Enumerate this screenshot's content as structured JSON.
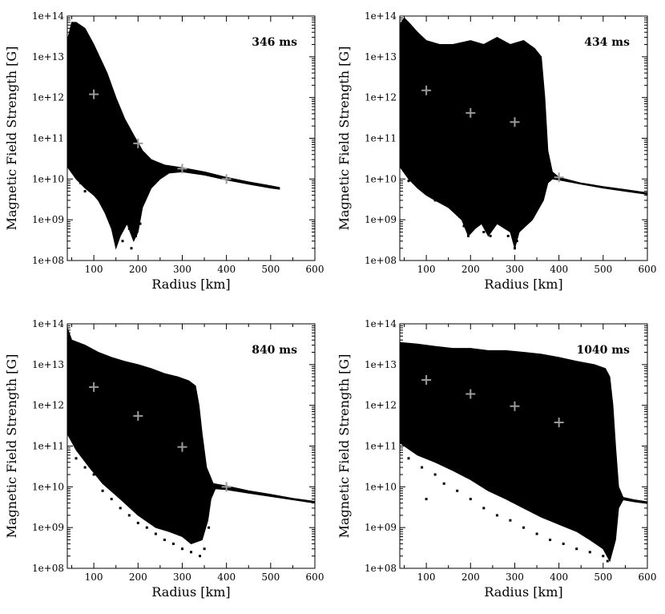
{
  "chart_data": [
    {
      "type": "scatter",
      "title": "346 ms",
      "xlabel": "Radius [km]",
      "ylabel": "Magnetic Field Strength [G]",
      "xlim": [
        40,
        600
      ],
      "ylim": [
        100000000.0,
        100000000000000.0
      ],
      "yscale": "log",
      "xticks": [
        "100",
        "200",
        "300",
        "400",
        "500",
        "600"
      ],
      "yticks": [
        "1e+08",
        "1e+09",
        "1e+10",
        "1e+11",
        "1e+12",
        "1e+13",
        "1e+14"
      ],
      "grid": false,
      "envelope_upper": [
        [
          40,
          25000000000000.0
        ],
        [
          50,
          70000000000000.0
        ],
        [
          60,
          70000000000000.0
        ],
        [
          80,
          50000000000000.0
        ],
        [
          100,
          20000000000000.0
        ],
        [
          130,
          4000000000000.0
        ],
        [
          150,
          1000000000000.0
        ],
        [
          170,
          300000000000.0
        ],
        [
          190,
          120000000000.0
        ],
        [
          210,
          50000000000.0
        ],
        [
          230,
          30000000000.0
        ],
        [
          260,
          22000000000.0
        ],
        [
          300,
          19000000000.0
        ],
        [
          350,
          15000000000.0
        ],
        [
          400,
          11000000000.0
        ],
        [
          450,
          8500000000.0
        ],
        [
          500,
          6800000000.0
        ],
        [
          520,
          6200000000.0
        ]
      ],
      "envelope_lower": [
        [
          520,
          5600000000.0
        ],
        [
          500,
          6000000000.0
        ],
        [
          450,
          7500000000.0
        ],
        [
          400,
          9500000000.0
        ],
        [
          350,
          12500000000.0
        ],
        [
          300,
          15000000000.0
        ],
        [
          270,
          14000000000.0
        ],
        [
          250,
          10000000000.0
        ],
        [
          230,
          6000000000.0
        ],
        [
          210,
          2000000000.0
        ],
        [
          200,
          500000000.0
        ],
        [
          190,
          300000000.0
        ],
        [
          175,
          800000000.0
        ],
        [
          160,
          400000000.0
        ],
        [
          150,
          200000000.0
        ],
        [
          140,
          600000000.0
        ],
        [
          125,
          1500000000.0
        ],
        [
          110,
          3000000000.0
        ],
        [
          100,
          4000000000.0
        ],
        [
          80,
          6000000000.0
        ],
        [
          60,
          10000000000.0
        ],
        [
          40,
          20000000000.0
        ]
      ],
      "scatter_extra": [
        [
          90,
          7000000000.0
        ],
        [
          100,
          5000000000.0
        ],
        [
          110,
          4000000000.0
        ],
        [
          120,
          3000000000.0
        ],
        [
          135,
          2500000000.0
        ],
        [
          145,
          1200000000.0
        ],
        [
          155,
          500000000.0
        ],
        [
          165,
          300000000.0
        ],
        [
          180,
          600000000.0
        ],
        [
          185,
          200000000.0
        ],
        [
          195,
          400000000.0
        ],
        [
          205,
          800000000.0
        ],
        [
          215,
          3000000000.0
        ],
        [
          80,
          5000000000.0
        ],
        [
          70,
          8000000000.0
        ],
        [
          125,
          2000000000.0
        ],
        [
          150,
          300000000.0
        ]
      ],
      "mean_markers": [
        [
          100,
          1200000000000.0
        ],
        [
          200,
          75000000000.0
        ],
        [
          300,
          18000000000.0
        ],
        [
          400,
          10000000000.0
        ]
      ]
    },
    {
      "type": "scatter",
      "title": "434 ms",
      "xlabel": "Radius [km]",
      "ylabel": "Magnetic Field Strength [G]",
      "xlim": [
        40,
        600
      ],
      "ylim": [
        100000000.0,
        100000000000000.0
      ],
      "yscale": "log",
      "xticks": [
        "100",
        "200",
        "300",
        "400",
        "500",
        "600"
      ],
      "yticks": [
        "1e+08",
        "1e+09",
        "1e+10",
        "1e+11",
        "1e+12",
        "1e+13",
        "1e+14"
      ],
      "grid": false,
      "envelope_upper": [
        [
          40,
          60000000000000.0
        ],
        [
          50,
          90000000000000.0
        ],
        [
          60,
          70000000000000.0
        ],
        [
          80,
          40000000000000.0
        ],
        [
          100,
          25000000000000.0
        ],
        [
          130,
          20000000000000.0
        ],
        [
          160,
          20000000000000.0
        ],
        [
          200,
          25000000000000.0
        ],
        [
          230,
          20000000000000.0
        ],
        [
          260,
          30000000000000.0
        ],
        [
          290,
          20000000000000.0
        ],
        [
          320,
          25000000000000.0
        ],
        [
          345,
          16000000000000.0
        ],
        [
          360,
          10000000000000.0
        ],
        [
          368,
          1000000000000.0
        ],
        [
          375,
          50000000000.0
        ],
        [
          385,
          15000000000.0
        ],
        [
          400,
          11000000000.0
        ],
        [
          450,
          8000000000.0
        ],
        [
          500,
          6500000000.0
        ],
        [
          550,
          5500000000.0
        ],
        [
          600,
          4600000000.0
        ]
      ],
      "envelope_lower": [
        [
          600,
          4200000000.0
        ],
        [
          550,
          5000000000.0
        ],
        [
          500,
          6000000000.0
        ],
        [
          450,
          7500000000.0
        ],
        [
          400,
          9500000000.0
        ],
        [
          385,
          10000000000.0
        ],
        [
          375,
          8000000000.0
        ],
        [
          365,
          3000000000.0
        ],
        [
          340,
          1000000000.0
        ],
        [
          310,
          500000000.0
        ],
        [
          300,
          200000000.0
        ],
        [
          290,
          500000000.0
        ],
        [
          260,
          800000000.0
        ],
        [
          240,
          400000000.0
        ],
        [
          225,
          800000000.0
        ],
        [
          210,
          600000000.0
        ],
        [
          195,
          400000000.0
        ],
        [
          180,
          1000000000.0
        ],
        [
          150,
          2000000000.0
        ],
        [
          120,
          3000000000.0
        ],
        [
          100,
          4000000000.0
        ],
        [
          80,
          6000000000.0
        ],
        [
          60,
          10000000000.0
        ],
        [
          40,
          20000000000.0
        ]
      ],
      "scatter_extra": [
        [
          60,
          9000000000.0
        ],
        [
          80,
          7000000000.0
        ],
        [
          100,
          5000000000.0
        ],
        [
          120,
          3000000000.0
        ],
        [
          140,
          2500000000.0
        ],
        [
          160,
          2000000000.0
        ],
        [
          175,
          1200000000.0
        ],
        [
          185,
          700000000.0
        ],
        [
          195,
          400000000.0
        ],
        [
          205,
          600000000.0
        ],
        [
          215,
          900000000.0
        ],
        [
          230,
          500000000.0
        ],
        [
          245,
          400000000.0
        ],
        [
          255,
          1200000000.0
        ],
        [
          270,
          800000000.0
        ],
        [
          285,
          400000000.0
        ],
        [
          300,
          200000000.0
        ],
        [
          305,
          300000000.0
        ],
        [
          320,
          1000000000.0
        ],
        [
          335,
          1500000000.0
        ],
        [
          350,
          2000000000.0
        ],
        [
          360,
          3000000000.0
        ]
      ],
      "mean_markers": [
        [
          100,
          1500000000000.0
        ],
        [
          200,
          420000000000.0
        ],
        [
          300,
          250000000000.0
        ],
        [
          400,
          11000000000.0
        ]
      ]
    },
    {
      "type": "scatter",
      "title": "840 ms",
      "xlabel": "Radius [km]",
      "ylabel": "Magnetic Field Strength [G]",
      "xlim": [
        40,
        600
      ],
      "ylim": [
        100000000.0,
        100000000000000.0
      ],
      "yscale": "log",
      "xticks": [
        "100",
        "200",
        "300",
        "400",
        "500",
        "600"
      ],
      "yticks": [
        "1e+08",
        "1e+09",
        "1e+10",
        "1e+11",
        "1e+12",
        "1e+13",
        "1e+14"
      ],
      "grid": false,
      "envelope_upper": [
        [
          40,
          80000000000000.0
        ],
        [
          50,
          40000000000000.0
        ],
        [
          80,
          30000000000000.0
        ],
        [
          110,
          20000000000000.0
        ],
        [
          140,
          15000000000000.0
        ],
        [
          170,
          12000000000000.0
        ],
        [
          200,
          10000000000000.0
        ],
        [
          230,
          8000000000000.0
        ],
        [
          260,
          6000000000000.0
        ],
        [
          290,
          5000000000000.0
        ],
        [
          315,
          4000000000000.0
        ],
        [
          330,
          3000000000000.0
        ],
        [
          338,
          1000000000000.0
        ],
        [
          345,
          200000000000.0
        ],
        [
          355,
          30000000000.0
        ],
        [
          370,
          12000000000.0
        ],
        [
          400,
          10500000000.0
        ],
        [
          450,
          8000000000.0
        ],
        [
          500,
          6500000000.0
        ],
        [
          550,
          5200000000.0
        ],
        [
          600,
          4400000000.0
        ]
      ],
      "envelope_lower": [
        [
          600,
          4000000000.0
        ],
        [
          550,
          4800000000.0
        ],
        [
          500,
          5800000000.0
        ],
        [
          450,
          7000000000.0
        ],
        [
          400,
          8500000000.0
        ],
        [
          375,
          9000000000.0
        ],
        [
          365,
          5000000000.0
        ],
        [
          358,
          1500000000.0
        ],
        [
          345,
          500000000.0
        ],
        [
          320,
          400000000.0
        ],
        [
          300,
          600000000.0
        ],
        [
          270,
          800000000.0
        ],
        [
          240,
          1000000000.0
        ],
        [
          200,
          2000000000.0
        ],
        [
          160,
          5000000000.0
        ],
        [
          120,
          12000000000.0
        ],
        [
          90,
          30000000000.0
        ],
        [
          60,
          80000000000.0
        ],
        [
          40,
          200000000000.0
        ]
      ],
      "scatter_extra": [
        [
          60,
          50000000000.0
        ],
        [
          80,
          30000000000.0
        ],
        [
          100,
          20000000000.0
        ],
        [
          120,
          8000000000.0
        ],
        [
          140,
          5000000000.0
        ],
        [
          160,
          3000000000.0
        ],
        [
          180,
          2000000000.0
        ],
        [
          200,
          1300000000.0
        ],
        [
          220,
          1000000000.0
        ],
        [
          240,
          700000000.0
        ],
        [
          260,
          500000000.0
        ],
        [
          280,
          400000000.0
        ],
        [
          300,
          300000000.0
        ],
        [
          320,
          250000000.0
        ],
        [
          340,
          200000000.0
        ],
        [
          350,
          300000000.0
        ],
        [
          360,
          1000000000.0
        ]
      ],
      "mean_markers": [
        [
          100,
          2800000000000.0
        ],
        [
          200,
          550000000000.0
        ],
        [
          300,
          95000000000.0
        ],
        [
          400,
          10000000000.0
        ]
      ]
    },
    {
      "type": "scatter",
      "title": "1040 ms",
      "xlabel": "Radius [km]",
      "ylabel": "Magnetic Field Strength [G]",
      "xlim": [
        40,
        600
      ],
      "ylim": [
        100000000.0,
        100000000000000.0
      ],
      "yscale": "log",
      "xticks": [
        "100",
        "200",
        "300",
        "400",
        "500",
        "600"
      ],
      "yticks": [
        "1e+08",
        "1e+09",
        "1e+10",
        "1e+11",
        "1e+12",
        "1e+13",
        "1e+14"
      ],
      "grid": false,
      "envelope_upper": [
        [
          40,
          35000000000000.0
        ],
        [
          80,
          32000000000000.0
        ],
        [
          120,
          28000000000000.0
        ],
        [
          160,
          25000000000000.0
        ],
        [
          200,
          25000000000000.0
        ],
        [
          240,
          22000000000000.0
        ],
        [
          280,
          22000000000000.0
        ],
        [
          320,
          20000000000000.0
        ],
        [
          360,
          18000000000000.0
        ],
        [
          400,
          15000000000000.0
        ],
        [
          440,
          12000000000000.0
        ],
        [
          480,
          10000000000000.0
        ],
        [
          505,
          8000000000000.0
        ],
        [
          515,
          5000000000000.0
        ],
        [
          522,
          1000000000000.0
        ],
        [
          528,
          100000000000.0
        ],
        [
          535,
          10000000000.0
        ],
        [
          545,
          5500000000.0
        ],
        [
          570,
          4800000000.0
        ],
        [
          600,
          4300000000.0
        ]
      ],
      "envelope_lower": [
        [
          600,
          3900000000.0
        ],
        [
          570,
          4300000000.0
        ],
        [
          545,
          4800000000.0
        ],
        [
          535,
          3000000000.0
        ],
        [
          528,
          500000000.0
        ],
        [
          515,
          150000000.0
        ],
        [
          500,
          300000000.0
        ],
        [
          470,
          500000000.0
        ],
        [
          440,
          800000000.0
        ],
        [
          400,
          1200000000.0
        ],
        [
          360,
          1800000000.0
        ],
        [
          320,
          3000000000.0
        ],
        [
          280,
          5000000000.0
        ],
        [
          240,
          8000000000.0
        ],
        [
          200,
          15000000000.0
        ],
        [
          160,
          25000000000.0
        ],
        [
          120,
          40000000000.0
        ],
        [
          80,
          60000000000.0
        ],
        [
          40,
          120000000000.0
        ]
      ],
      "scatter_extra": [
        [
          60,
          50000000000.0
        ],
        [
          90,
          30000000000.0
        ],
        [
          100,
          5000000000.0
        ],
        [
          120,
          20000000000.0
        ],
        [
          140,
          12000000000.0
        ],
        [
          170,
          8000000000.0
        ],
        [
          200,
          5000000000.0
        ],
        [
          230,
          3000000000.0
        ],
        [
          260,
          2000000000.0
        ],
        [
          290,
          1500000000.0
        ],
        [
          320,
          1000000000.0
        ],
        [
          350,
          700000000.0
        ],
        [
          380,
          500000000.0
        ],
        [
          410,
          400000000.0
        ],
        [
          440,
          300000000.0
        ],
        [
          470,
          250000000.0
        ],
        [
          500,
          200000000.0
        ],
        [
          510,
          150000000.0
        ]
      ],
      "mean_markers": [
        [
          100,
          4200000000000.0
        ],
        [
          200,
          1900000000000.0
        ],
        [
          300,
          950000000000.0
        ],
        [
          400,
          380000000000.0
        ]
      ]
    }
  ]
}
